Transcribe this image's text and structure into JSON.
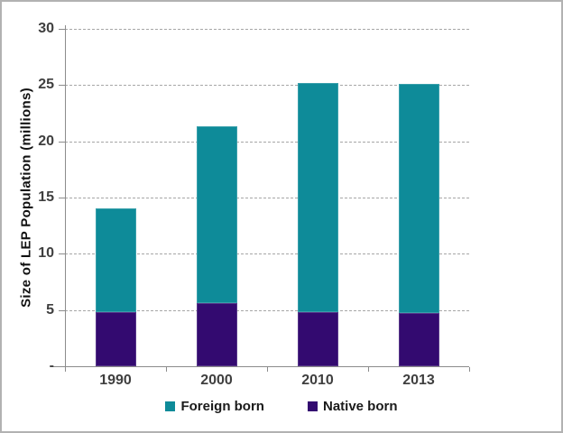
{
  "chart_data": {
    "type": "bar",
    "stacked": true,
    "title": "",
    "xlabel": "",
    "ylabel": "Size of LEP Population (millions)",
    "categories": [
      "1990",
      "2000",
      "2010",
      "2013"
    ],
    "series": [
      {
        "name": "Foreign born",
        "color": "#0e8b99",
        "values": [
          9.2,
          15.7,
          20.4,
          20.4
        ]
      },
      {
        "name": "Native born",
        "color": "#330a70",
        "values": [
          4.8,
          5.6,
          4.8,
          4.7
        ]
      }
    ],
    "stack_order_bottom_to_top": [
      "Native born",
      "Foreign born"
    ],
    "ylim": [
      0,
      30
    ],
    "ytick_interval": 5,
    "yticks": [
      {
        "value": 30,
        "label": "30"
      },
      {
        "value": 25,
        "label": "25"
      },
      {
        "value": 20,
        "label": "20"
      },
      {
        "value": 15,
        "label": "15"
      },
      {
        "value": 10,
        "label": "10"
      },
      {
        "value": 5,
        "label": "5"
      },
      {
        "value": 0,
        "label": "-"
      }
    ],
    "grid": "horizontal-dashed",
    "legend_position": "bottom-center"
  },
  "colors": {
    "foreign_born": "#0e8b99",
    "native_born": "#330a70",
    "gridline": "#a6a6a6",
    "axis": "#8c8c8c",
    "tick_text": "#3f3f3f",
    "frame_border": "#b2b2b2",
    "background": "#ffffff"
  }
}
